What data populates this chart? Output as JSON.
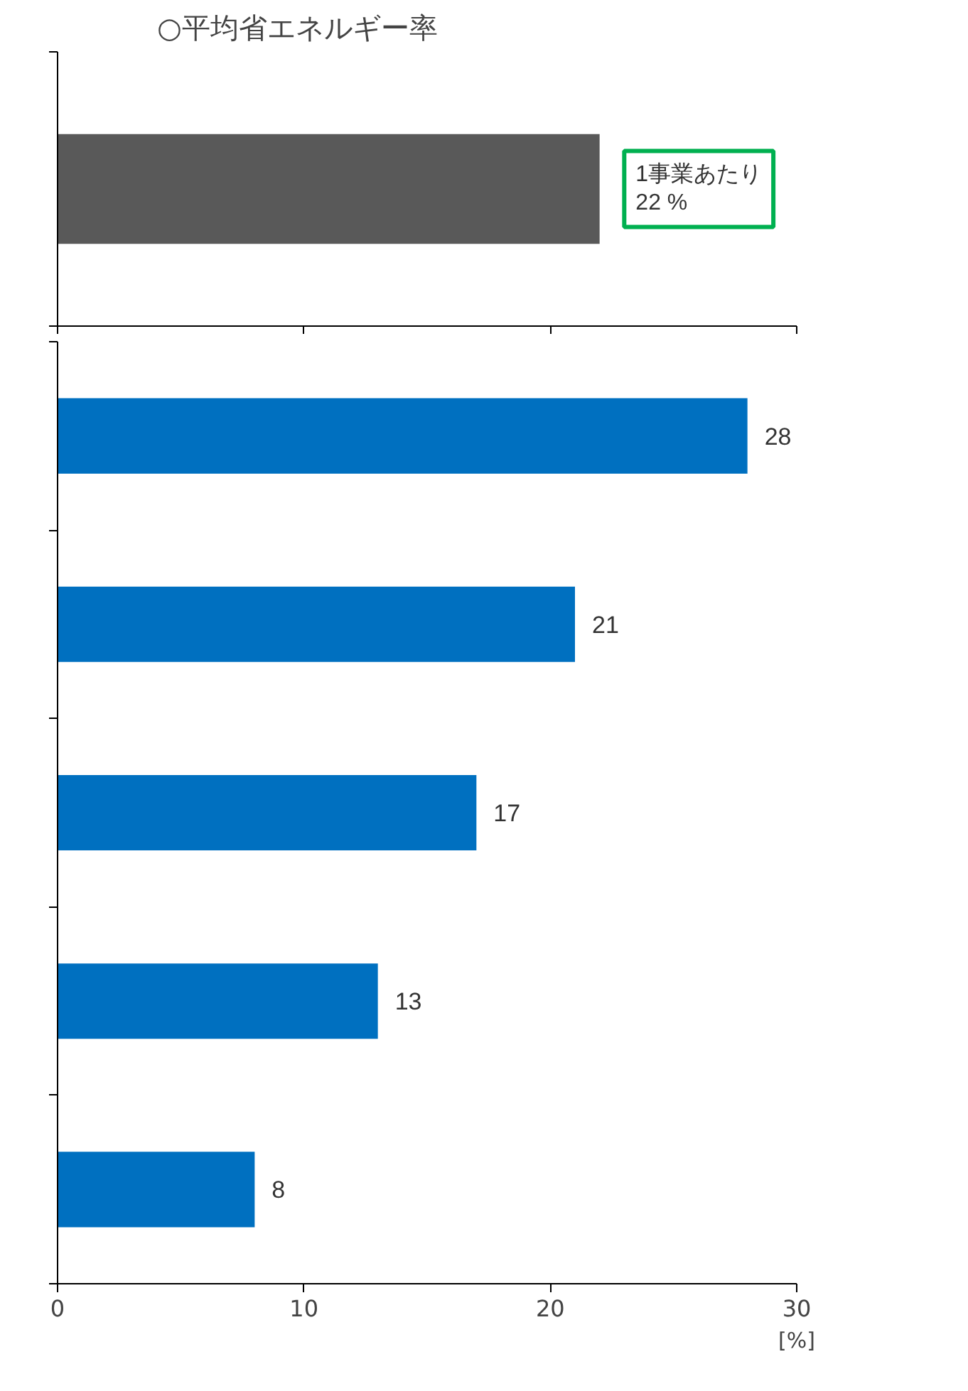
{
  "chart_data": [
    {
      "type": "bar",
      "orientation": "horizontal",
      "title": "○平均省エネルギー率",
      "categories": [
        null
      ],
      "values": [
        22
      ],
      "color": "#595959",
      "xlim": [
        0,
        30
      ],
      "xticks": [
        0,
        10,
        20,
        30
      ],
      "tick_labels": false,
      "grid": false,
      "annotations": [
        "1事業あたり\n22 %"
      ]
    },
    {
      "type": "bar",
      "orientation": "horizontal",
      "categories": [
        null,
        null,
        null,
        null,
        null
      ],
      "values": [
        28,
        21,
        17,
        13,
        8
      ],
      "color": "#0070c0",
      "xlim": [
        0,
        30
      ],
      "xticks": [
        0,
        10,
        20,
        30
      ],
      "xlabel": "[%]",
      "data_labels": true,
      "grid": false
    }
  ]
}
